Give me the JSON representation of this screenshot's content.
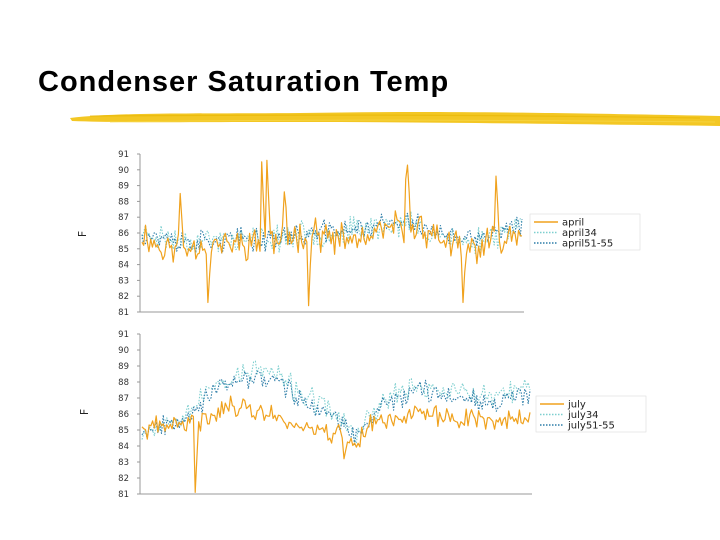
{
  "slide": {
    "title": "Condenser Saturation Temp",
    "colors": {
      "underline": "#f2c418",
      "series_main": "#f0a21e",
      "series_34": "#7ecfcf",
      "series_51_55": "#2d7da8",
      "axis": "#999999"
    }
  },
  "chart_data": [
    {
      "type": "line",
      "title": "",
      "xlabel": "",
      "ylabel": "F",
      "ylim": [
        81,
        91
      ],
      "yticks": [
        "81",
        "82",
        "83",
        "84",
        "85",
        "86",
        "87",
        "88",
        "89",
        "90",
        "91"
      ],
      "grid": false,
      "legend_position": "right",
      "series": [
        {
          "name": "april",
          "color": "#f0a21e",
          "style": "solid",
          "seed": 11,
          "base": [
            [
              0,
              86
            ],
            [
              0.05,
              85
            ],
            [
              0.15,
              85.2
            ],
            [
              0.3,
              85.4
            ],
            [
              0.35,
              85.5
            ],
            [
              0.4,
              85.8
            ],
            [
              0.45,
              86.2
            ],
            [
              0.5,
              85.5
            ],
            [
              0.6,
              85.6
            ],
            [
              0.65,
              86.3
            ],
            [
              0.72,
              86.5
            ],
            [
              0.8,
              85.5
            ],
            [
              0.85,
              84.8
            ],
            [
              0.9,
              85.2
            ],
            [
              1,
              86.3
            ]
          ],
          "noise": 1.2,
          "spikes": [
            [
              0.1,
              88.5
            ],
            [
              0.175,
              81.6
            ],
            [
              0.315,
              90.5
            ],
            [
              0.328,
              90.6
            ],
            [
              0.375,
              88.6
            ],
            [
              0.44,
              81.4
            ],
            [
              0.695,
              89.4
            ],
            [
              0.7,
              90.3
            ],
            [
              0.845,
              81.6
            ],
            [
              0.93,
              89.6
            ]
          ]
        },
        {
          "name": "april34",
          "color": "#7ecfcf",
          "style": "dotted",
          "seed": 23,
          "base": [
            [
              0,
              86
            ],
            [
              0.1,
              85.5
            ],
            [
              0.3,
              85.6
            ],
            [
              0.5,
              86
            ],
            [
              0.7,
              86.6
            ],
            [
              0.85,
              85.3
            ],
            [
              1,
              86.5
            ]
          ],
          "noise": 1.0,
          "spikes": []
        },
        {
          "name": "april51-55",
          "color": "#2d7da8",
          "style": "dotted",
          "seed": 37,
          "base": [
            [
              0,
              86
            ],
            [
              0.1,
              85.4
            ],
            [
              0.3,
              85.6
            ],
            [
              0.5,
              86.1
            ],
            [
              0.7,
              86.7
            ],
            [
              0.85,
              85.4
            ],
            [
              1,
              86.4
            ]
          ],
          "noise": 0.9,
          "spikes": []
        }
      ]
    },
    {
      "type": "line",
      "title": "",
      "xlabel": "",
      "ylabel": "F",
      "ylim": [
        81,
        91
      ],
      "yticks": [
        "81",
        "82",
        "83",
        "84",
        "85",
        "86",
        "87",
        "88",
        "89",
        "90",
        "91"
      ],
      "grid": false,
      "legend_position": "right",
      "series": [
        {
          "name": "july",
          "color": "#f0a21e",
          "style": "solid",
          "seed": 41,
          "base": [
            [
              0,
              85
            ],
            [
              0.05,
              85.2
            ],
            [
              0.15,
              85.5
            ],
            [
              0.2,
              86.3
            ],
            [
              0.25,
              86.5
            ],
            [
              0.3,
              86.2
            ],
            [
              0.35,
              85.8
            ],
            [
              0.4,
              85.3
            ],
            [
              0.5,
              84.8
            ],
            [
              0.55,
              84.2
            ],
            [
              0.6,
              85.5
            ],
            [
              0.7,
              86
            ],
            [
              0.8,
              85.8
            ],
            [
              0.9,
              85.6
            ],
            [
              1,
              85.8
            ]
          ],
          "noise": 0.8,
          "spikes": [
            [
              0.135,
              81.1
            ],
            [
              0.52,
              83.2
            ]
          ]
        },
        {
          "name": "july34",
          "color": "#7ecfcf",
          "style": "dotted",
          "seed": 53,
          "base": [
            [
              0,
              85
            ],
            [
              0.05,
              85.4
            ],
            [
              0.12,
              86.2
            ],
            [
              0.2,
              88
            ],
            [
              0.25,
              88.4
            ],
            [
              0.3,
              88.8
            ],
            [
              0.35,
              88.4
            ],
            [
              0.4,
              87.4
            ],
            [
              0.5,
              86
            ],
            [
              0.55,
              84.6
            ],
            [
              0.62,
              86.8
            ],
            [
              0.7,
              87.8
            ],
            [
              0.8,
              87.4
            ],
            [
              0.9,
              87
            ],
            [
              1,
              87.6
            ]
          ],
          "noise": 0.9,
          "spikes": []
        },
        {
          "name": "july51-55",
          "color": "#2d7da8",
          "style": "dotted",
          "seed": 67,
          "base": [
            [
              0,
              85
            ],
            [
              0.05,
              85.3
            ],
            [
              0.12,
              86
            ],
            [
              0.2,
              87.6
            ],
            [
              0.25,
              88
            ],
            [
              0.3,
              88.4
            ],
            [
              0.35,
              88
            ],
            [
              0.4,
              87
            ],
            [
              0.5,
              85.8
            ],
            [
              0.55,
              84.4
            ],
            [
              0.62,
              86.6
            ],
            [
              0.7,
              87.5
            ],
            [
              0.8,
              87.2
            ],
            [
              0.9,
              86.8
            ],
            [
              1,
              87.2
            ]
          ],
          "noise": 0.8,
          "spikes": []
        }
      ]
    }
  ]
}
